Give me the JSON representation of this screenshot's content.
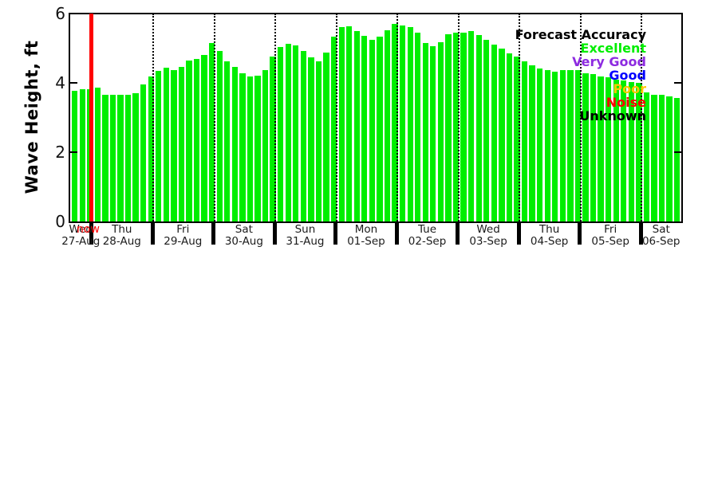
{
  "chart_data": {
    "type": "bar",
    "title": "",
    "xlabel": "",
    "ylabel": "Wave Height, ft",
    "ylim": [
      0,
      6
    ],
    "yticks": [
      0,
      2,
      4,
      6
    ],
    "grid": "vertical-dotted-day-boundaries",
    "bar_color": "#00ee00",
    "now_label": "now",
    "now_line_color": "#ff0000",
    "now_after_day_index": 1,
    "legend_position": "top-right-inside",
    "days": [
      {
        "day": "Wed",
        "date": "27-Aug",
        "values": [
          3.76,
          3.82,
          3.82
        ]
      },
      {
        "day": "Thu",
        "date": "28-Aug",
        "values": [
          3.86,
          3.66,
          3.66,
          3.66,
          3.66,
          3.71,
          3.95,
          4.18
        ]
      },
      {
        "day": "Fri",
        "date": "29-Aug",
        "values": [
          4.34,
          4.43,
          4.37,
          4.47,
          4.65,
          4.69,
          4.8,
          5.16
        ]
      },
      {
        "day": "Sat",
        "date": "30-Aug",
        "values": [
          4.91,
          4.63,
          4.47,
          4.28,
          4.18,
          4.21,
          4.36,
          4.76
        ]
      },
      {
        "day": "Sun",
        "date": "31-Aug",
        "values": [
          5.03,
          5.12,
          5.07,
          4.91,
          4.74,
          4.63,
          4.87,
          5.33
        ]
      },
      {
        "day": "Mon",
        "date": "01-Sep",
        "values": [
          5.62,
          5.64,
          5.49,
          5.36,
          5.24,
          5.33,
          5.52,
          5.7
        ]
      },
      {
        "day": "Tue",
        "date": "02-Sep",
        "values": [
          5.66,
          5.6,
          5.44,
          5.16,
          5.06,
          5.18,
          5.41,
          5.44
        ]
      },
      {
        "day": "Wed",
        "date": "03-Sep",
        "values": [
          5.46,
          5.49,
          5.38,
          5.24,
          5.1,
          5.0,
          4.86,
          4.77
        ]
      },
      {
        "day": "Thu",
        "date": "04-Sep",
        "values": [
          4.61,
          4.51,
          4.41,
          4.36,
          4.32,
          4.36,
          4.37,
          4.37
        ]
      },
      {
        "day": "Fri",
        "date": "05-Sep",
        "values": [
          4.28,
          4.26,
          4.18,
          4.15,
          4.09,
          4.06,
          4.02,
          3.99
        ]
      },
      {
        "day": "Sat",
        "date": "06-Sep",
        "values": [
          3.72,
          3.65,
          3.65,
          3.62,
          3.56
        ]
      }
    ]
  },
  "legend": {
    "title": {
      "label": "Forecast Accuracy",
      "color": "#000000"
    },
    "items": [
      {
        "label": "Excellent",
        "color": "#00ee00"
      },
      {
        "label": "Very Good",
        "color": "#8d2be0"
      },
      {
        "label": "Good",
        "color": "#0000ff"
      },
      {
        "label": "Poor",
        "color": "#ffc800"
      },
      {
        "label": "Noise",
        "color": "#ff0000"
      },
      {
        "label": "Unknown",
        "color": "#000000"
      }
    ]
  }
}
